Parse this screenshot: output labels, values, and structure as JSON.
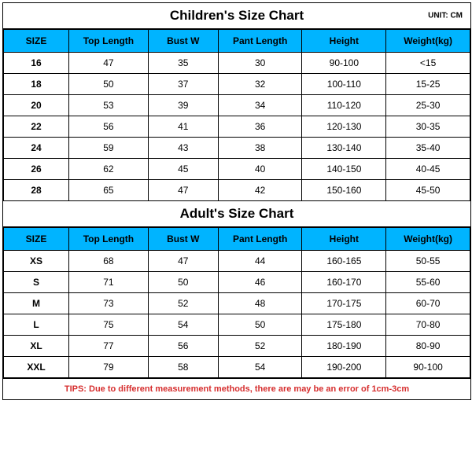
{
  "children": {
    "title": "Children's Size Chart",
    "unit": "UNIT: CM",
    "columns": [
      "SIZE",
      "Top Length",
      "Bust W",
      "Pant Length",
      "Height",
      "Weight(kg)"
    ],
    "rows": [
      [
        "16",
        "47",
        "35",
        "30",
        "90-100",
        "<15"
      ],
      [
        "18",
        "50",
        "37",
        "32",
        "100-110",
        "15-25"
      ],
      [
        "20",
        "53",
        "39",
        "34",
        "110-120",
        "25-30"
      ],
      [
        "22",
        "56",
        "41",
        "36",
        "120-130",
        "30-35"
      ],
      [
        "24",
        "59",
        "43",
        "38",
        "130-140",
        "35-40"
      ],
      [
        "26",
        "62",
        "45",
        "40",
        "140-150",
        "40-45"
      ],
      [
        "28",
        "65",
        "47",
        "42",
        "150-160",
        "45-50"
      ]
    ]
  },
  "adult": {
    "title": "Adult's Size Chart",
    "columns": [
      "SIZE",
      "Top Length",
      "Bust W",
      "Pant Length",
      "Height",
      "Weight(kg)"
    ],
    "rows": [
      [
        "XS",
        "68",
        "47",
        "44",
        "160-165",
        "50-55"
      ],
      [
        "S",
        "71",
        "50",
        "46",
        "160-170",
        "55-60"
      ],
      [
        "M",
        "73",
        "52",
        "48",
        "170-175",
        "60-70"
      ],
      [
        "L",
        "75",
        "54",
        "50",
        "175-180",
        "70-80"
      ],
      [
        "XL",
        "77",
        "56",
        "52",
        "180-190",
        "80-90"
      ],
      [
        "XXL",
        "79",
        "58",
        "54",
        "190-200",
        "90-100"
      ]
    ]
  },
  "tips": "TIPS: Due to different measurement methods, there are may be an error of 1cm-3cm",
  "style": {
    "header_bg": "#00b4ff",
    "tips_color": "#d62e2e",
    "border_color": "#000000",
    "background": "#ffffff",
    "title_fontsize": 17,
    "header_fontsize": 12,
    "cell_fontsize": 12,
    "tips_fontsize": 11,
    "unit_fontsize": 10
  }
}
